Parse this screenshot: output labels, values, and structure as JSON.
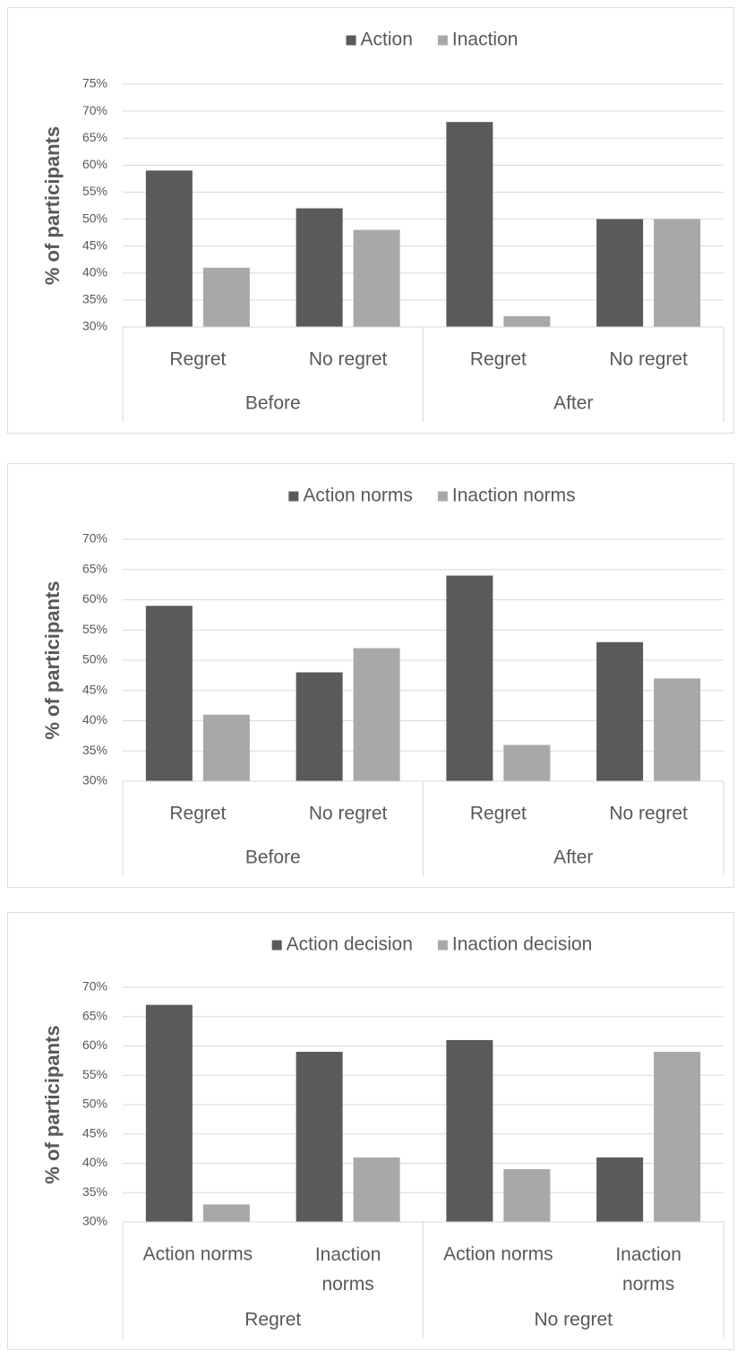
{
  "chart_data": [
    {
      "type": "bar",
      "y_label": "% of participants",
      "groups": [
        "Before",
        "After"
      ],
      "categories": [
        "Regret",
        "No regret",
        "Regret",
        "No regret"
      ],
      "series": [
        {
          "name": "Action",
          "color": "#5a5a5a",
          "values": [
            59,
            52,
            68,
            50
          ]
        },
        {
          "name": "Inaction",
          "color": "#a8a8a8",
          "values": [
            41,
            48,
            32,
            50
          ]
        }
      ],
      "ylim": [
        30,
        75
      ],
      "yticks": [
        {
          "value": 30,
          "label": "30%"
        },
        {
          "value": 35,
          "label": "35%"
        },
        {
          "value": 40,
          "label": "40%"
        },
        {
          "value": 45,
          "label": "45%"
        },
        {
          "value": 50,
          "label": "50%"
        },
        {
          "value": 55,
          "label": "55%"
        },
        {
          "value": 60,
          "label": "60%"
        },
        {
          "value": 65,
          "label": "65%"
        },
        {
          "value": 70,
          "label": "70%"
        },
        {
          "value": 75,
          "label": "75%"
        }
      ],
      "grid": true,
      "legend": "top"
    },
    {
      "type": "bar",
      "y_label": "% of participants",
      "groups": [
        "Before",
        "After"
      ],
      "categories": [
        "Regret",
        "No regret",
        "Regret",
        "No regret"
      ],
      "series": [
        {
          "name": "Action norms",
          "color": "#5a5a5a",
          "values": [
            59,
            48,
            64,
            53
          ]
        },
        {
          "name": "Inaction norms",
          "color": "#a8a8a8",
          "values": [
            41,
            52,
            36,
            47
          ]
        }
      ],
      "ylim": [
        30,
        70
      ],
      "yticks": [
        {
          "value": 30,
          "label": "30%"
        },
        {
          "value": 35,
          "label": "35%"
        },
        {
          "value": 40,
          "label": "40%"
        },
        {
          "value": 45,
          "label": "45%"
        },
        {
          "value": 50,
          "label": "50%"
        },
        {
          "value": 55,
          "label": "55%"
        },
        {
          "value": 60,
          "label": "60%"
        },
        {
          "value": 65,
          "label": "65%"
        },
        {
          "value": 70,
          "label": "70%"
        }
      ],
      "grid": true,
      "legend": "top"
    },
    {
      "type": "bar",
      "y_label": "% of participants",
      "groups": [
        "Regret",
        "No regret"
      ],
      "categories": [
        "Action norms",
        "Inaction norms",
        "Action norms",
        "Inaction norms"
      ],
      "series": [
        {
          "name": "Action decision",
          "color": "#5a5a5a",
          "values": [
            67,
            59,
            61,
            41
          ]
        },
        {
          "name": "Inaction decision",
          "color": "#a8a8a8",
          "values": [
            33,
            41,
            39,
            59
          ]
        }
      ],
      "ylim": [
        30,
        70
      ],
      "yticks": [
        {
          "value": 30,
          "label": "30%"
        },
        {
          "value": 35,
          "label": "35%"
        },
        {
          "value": 40,
          "label": "40%"
        },
        {
          "value": 45,
          "label": "45%"
        },
        {
          "value": 50,
          "label": "50%"
        },
        {
          "value": 55,
          "label": "55%"
        },
        {
          "value": 60,
          "label": "60%"
        },
        {
          "value": 65,
          "label": "65%"
        },
        {
          "value": 70,
          "label": "70%"
        }
      ],
      "grid": true,
      "legend": "top"
    }
  ]
}
